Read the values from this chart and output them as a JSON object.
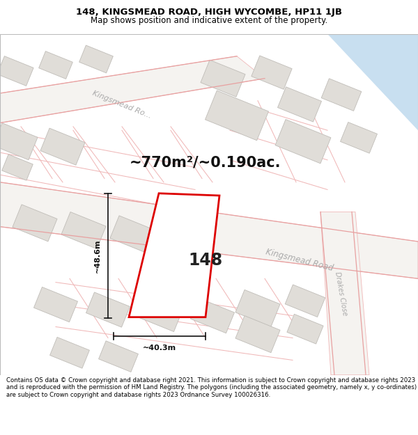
{
  "title": "148, KINGSMEAD ROAD, HIGH WYCOMBE, HP11 1JB",
  "subtitle": "Map shows position and indicative extent of the property.",
  "footer": "Contains OS data © Crown copyright and database right 2021. This information is subject to Crown copyright and database rights 2023 and is reproduced with the permission of HM Land Registry. The polygons (including the associated geometry, namely x, y co-ordinates) are subject to Crown copyright and database rights 2023 Ordnance Survey 100026316.",
  "area_text": "~770m²/~0.190ac.",
  "label_148": "148",
  "dim_width": "~40.3m",
  "dim_height": "~48.6m",
  "road_label_upper": "Kingsmead Ro...",
  "road_label_lower": "Kingsmead Road",
  "road_label_side": "Drakes Close",
  "bg_color": "#f2f0ed",
  "road_fill": "#ffffff",
  "blue_fill": "#c8dff0",
  "plot_outline_color": "#dd0000",
  "plot_fill": "#ffffff",
  "building_fill": "#e0ddd8",
  "building_outline": "#c0bdb8",
  "road_line_color": "#e8a0a0",
  "parcel_line_color": "#f0b8b8",
  "dim_color": "#111111",
  "text_gray": "#aaaaaa",
  "title_fontsize": 9.5,
  "subtitle_fontsize": 8.5,
  "footer_fontsize": 6.2,
  "area_fontsize": 15,
  "label_fontsize": 17,
  "dim_fontsize": 8,
  "road_fontsize": 8.5,
  "road_upper_fontsize": 8,
  "road_side_fontsize": 7
}
